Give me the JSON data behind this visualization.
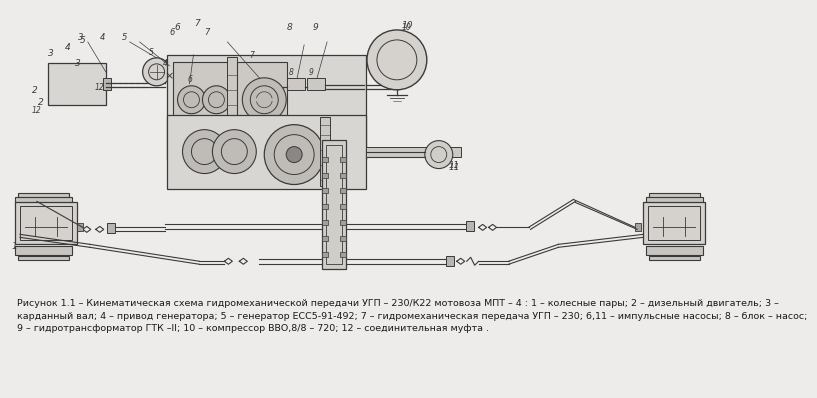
{
  "background_color": "#edecea",
  "line_color": "#3a3a3a",
  "text_color": "#1a1a1a",
  "caption_text": "Рисунок 1.1 – Кинематическая схема гидромеханической передачи УГП – 230/К22 мотовоза МПТ – 4 : 1 – колесные пары; 2 – дизельный двигатель; 3 –\nкарданный вал; 4 – привод генератора; 5 – генератор ЕСС5-91-492; 7 – гидромеханическая передача УГП – 230; 6,11 – импульсные насосы; 8 – блок – насос;\n9 – гидротрансформатор ГТК –II; 10 – компрессор ВВО,8/8 – 720; 12 – соединительная муфта .",
  "caption_fontsize": 6.8,
  "lw": 0.7
}
